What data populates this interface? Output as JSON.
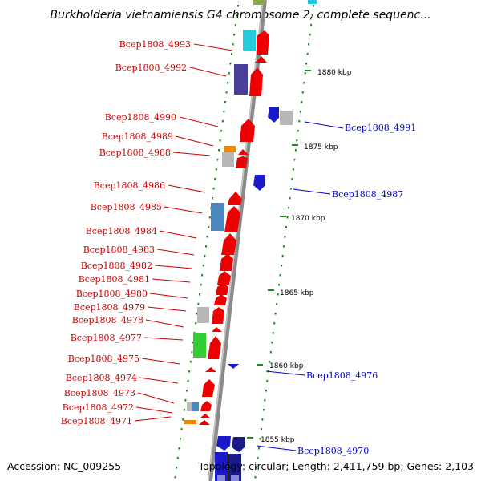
{
  "title": "Burkholderia vietnamiensis G4 chromosome 2, complete sequenc...",
  "footer": {
    "accession": "Accession: NC_009255",
    "topology": "Topology: circular; Length: 2,411,759 bp; Genes: 2,103"
  },
  "colors": {
    "forward": "#ee0000",
    "reverse": "#1a1acc",
    "cyan": "#22ccdd",
    "purple": "#4a3f99",
    "steel": "#4a86c0",
    "green": "#33cc33",
    "orange": "#ee8800",
    "gray": "#b8b8b8",
    "olive": "#88aa44",
    "navy": "#1a1a88",
    "tick": "#1a8a1a",
    "label_red": "#cc0000",
    "label_blue": "#0000cc"
  },
  "kbp_labels": [
    "1880 kbp",
    "1875 kbp",
    "1870 kbp",
    "1865 kbp",
    "1860 kbp",
    "1855 kbp"
  ],
  "forward_labels": [
    "Bcep1808_4993",
    "Bcep1808_4992",
    "Bcep1808_4990",
    "Bcep1808_4989",
    "Bcep1808_4988",
    "Bcep1808_4986",
    "Bcep1808_4985",
    "Bcep1808_4984",
    "Bcep1808_4983",
    "Bcep1808_4982",
    "Bcep1808_4981",
    "Bcep1808_4980",
    "Bcep1808_4979",
    "Bcep1808_4978",
    "Bcep1808_4977",
    "Bcep1808_4975",
    "Bcep1808_4974",
    "Bcep1808_4973",
    "Bcep1808_4972",
    "Bcep1808_4971"
  ],
  "reverse_labels": [
    "Bcep1808_4991",
    "Bcep1808_4987",
    "Bcep1808_4976",
    "Bcep1808_4970"
  ]
}
